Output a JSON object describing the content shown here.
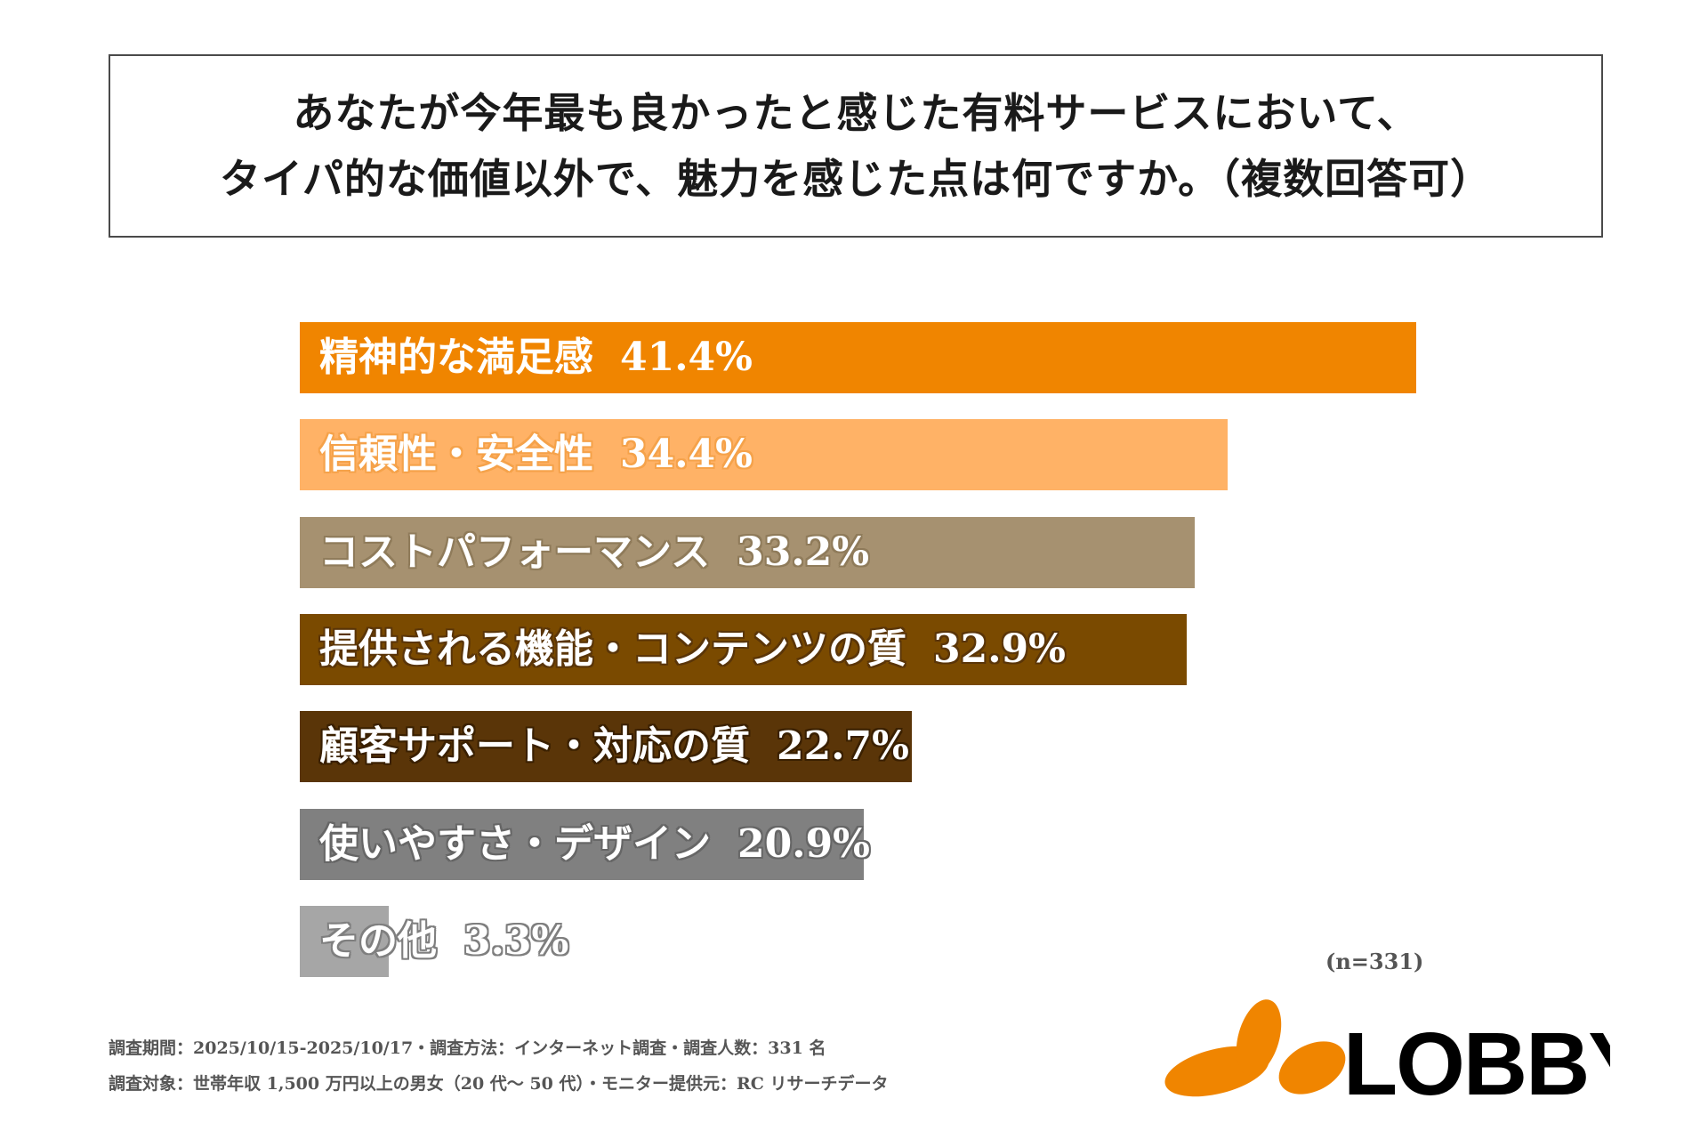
{
  "title": {
    "line1": "あなたが今年最も良かったと感じた有料サービスにおいて、",
    "line2": "タイパ的な価値以外で、魅力を感じた点は何ですか。（複数回答可）"
  },
  "chart_data": {
    "type": "bar",
    "orientation": "horizontal",
    "title": "あなたが今年最も良かったと感じた有料サービスにおいて、タイパ的な価値以外で、魅力を感じた点は何ですか。（複数回答可）",
    "categories": [
      "精神的な満足感",
      "信頼性・安全性",
      "コストパフォーマンス",
      "提供される機能・コンテンツの質",
      "顧客サポート・対応の質",
      "使いやすさ・デザイン",
      "その他"
    ],
    "values": [
      41.4,
      34.4,
      33.2,
      32.9,
      22.7,
      20.9,
      3.3
    ],
    "value_labels": [
      "41.4%",
      "34.4%",
      "33.2%",
      "32.9%",
      "22.7%",
      "20.9%",
      "3.3%"
    ],
    "unit": "%",
    "colors": [
      "#F08500",
      "#FFB266",
      "#A69170",
      "#7A4A00",
      "#5A3508",
      "#808080",
      "#A6A6A6"
    ],
    "xlim": [
      0,
      41.4
    ]
  },
  "sample_note": "(n=331)",
  "footnote": {
    "line1": "調査期間：2025/10/15-2025/10/17・調査方法：インターネット調査・調査人数：331 名",
    "line2": "調査対象：世帯年収 1,500 万円以上の男女（20 代〜 50 代）・モニター提供元：RC リサーチデータ"
  },
  "logo": {
    "text": "LOBBY",
    "color": "#F08500"
  }
}
